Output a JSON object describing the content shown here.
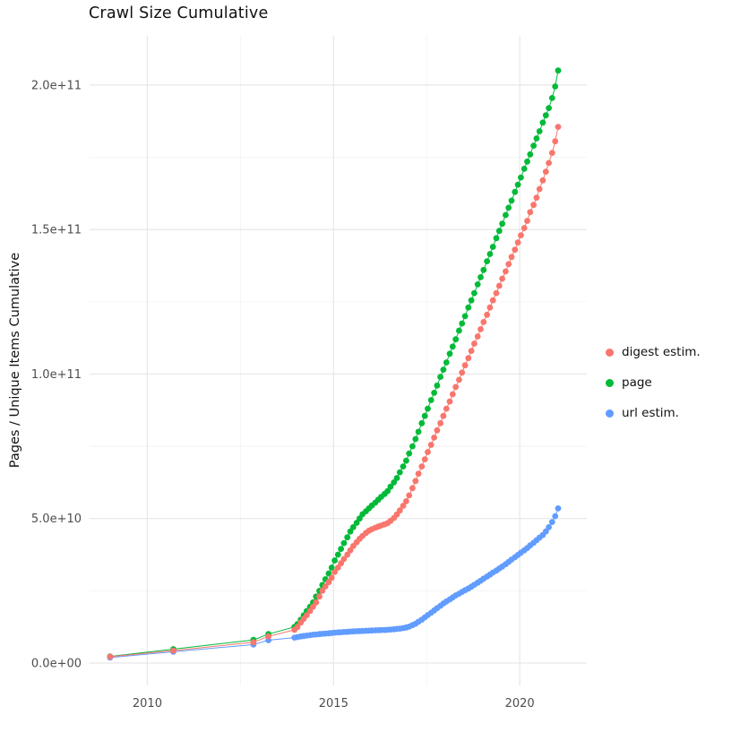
{
  "figure": {
    "title": "Crawl Size Cumulative",
    "ylabel": "Pages / Unique Items Cumulative"
  },
  "chart_data": {
    "type": "scatter",
    "title": "Crawl Size Cumulative",
    "xlabel": "",
    "ylabel": "Pages / Unique Items Cumulative",
    "grid": true,
    "legend_position": "right",
    "background_color": "#ffffff",
    "grid_major_color": "#e7e7e7",
    "grid_minor_color": "#f2f2f2",
    "tick_label_color": "#4d4d4d",
    "y_unit": 1000000000.0,
    "x_domain": [
      2008.45,
      2021.8
    ],
    "y_domain_units": [
      -7.75,
      217
    ],
    "x_ticks": [
      {
        "v": 2010,
        "label": "2010"
      },
      {
        "v": 2015,
        "label": "2015"
      },
      {
        "v": 2020,
        "label": "2020"
      }
    ],
    "y_ticks": [
      {
        "v": 0,
        "label": "0.0e+00"
      },
      {
        "v": 50,
        "label": "5.0e+10"
      },
      {
        "v": 100,
        "label": "1.0e+11"
      },
      {
        "v": 150,
        "label": "1.5e+11"
      },
      {
        "v": 200,
        "label": "2.0e+11"
      }
    ],
    "x_minor": [
      2012.5,
      2017.5
    ],
    "y_minor": [
      25,
      75,
      125,
      175
    ],
    "draw_order": [
      1,
      2,
      0
    ],
    "series": [
      {
        "id": "digest-estim",
        "name": "digest estim.",
        "color": "#F8766D",
        "points": [
          [
            2009.0,
            2.2
          ],
          [
            2010.7,
            4.3
          ],
          [
            2012.85,
            7.2
          ],
          [
            2013.25,
            9.2
          ],
          [
            2013.95,
            11.5
          ],
          [
            2014.03,
            12.5
          ],
          [
            2014.12,
            14
          ],
          [
            2014.2,
            15.3
          ],
          [
            2014.28,
            16.6
          ],
          [
            2014.37,
            18
          ],
          [
            2014.45,
            19.5
          ],
          [
            2014.53,
            21
          ],
          [
            2014.62,
            23
          ],
          [
            2014.7,
            25
          ],
          [
            2014.78,
            26.5
          ],
          [
            2014.87,
            28
          ],
          [
            2014.95,
            29.5
          ],
          [
            2015.03,
            31.5
          ],
          [
            2015.12,
            33
          ],
          [
            2015.2,
            34.5
          ],
          [
            2015.28,
            36
          ],
          [
            2015.37,
            37.5
          ],
          [
            2015.45,
            39
          ],
          [
            2015.53,
            40.5
          ],
          [
            2015.62,
            41.8
          ],
          [
            2015.7,
            43
          ],
          [
            2015.78,
            44
          ],
          [
            2015.87,
            45
          ],
          [
            2015.95,
            45.8
          ],
          [
            2016.03,
            46.3
          ],
          [
            2016.12,
            46.8
          ],
          [
            2016.2,
            47.2
          ],
          [
            2016.28,
            47.6
          ],
          [
            2016.37,
            48
          ],
          [
            2016.45,
            48.4
          ],
          [
            2016.53,
            49.2
          ],
          [
            2016.62,
            50.2
          ],
          [
            2016.7,
            51.4
          ],
          [
            2016.78,
            52.8
          ],
          [
            2016.87,
            54.4
          ],
          [
            2016.95,
            56
          ],
          [
            2017.03,
            58
          ],
          [
            2017.12,
            60.5
          ],
          [
            2017.2,
            63
          ],
          [
            2017.28,
            65.5
          ],
          [
            2017.37,
            68
          ],
          [
            2017.45,
            70.5
          ],
          [
            2017.53,
            73
          ],
          [
            2017.62,
            75.5
          ],
          [
            2017.7,
            78
          ],
          [
            2017.78,
            80.5
          ],
          [
            2017.87,
            83
          ],
          [
            2017.95,
            85.5
          ],
          [
            2018.03,
            88
          ],
          [
            2018.12,
            90.5
          ],
          [
            2018.2,
            93
          ],
          [
            2018.28,
            95.5
          ],
          [
            2018.37,
            98
          ],
          [
            2018.45,
            100.5
          ],
          [
            2018.53,
            103
          ],
          [
            2018.62,
            105.5
          ],
          [
            2018.7,
            108
          ],
          [
            2018.78,
            110.5
          ],
          [
            2018.87,
            113
          ],
          [
            2018.95,
            115.5
          ],
          [
            2019.03,
            118
          ],
          [
            2019.12,
            120.5
          ],
          [
            2019.2,
            123
          ],
          [
            2019.28,
            125.5
          ],
          [
            2019.37,
            128
          ],
          [
            2019.45,
            130.5
          ],
          [
            2019.53,
            133
          ],
          [
            2019.62,
            135.5
          ],
          [
            2019.7,
            138
          ],
          [
            2019.78,
            140.5
          ],
          [
            2019.87,
            143
          ],
          [
            2019.95,
            145.5
          ],
          [
            2020.03,
            148
          ],
          [
            2020.12,
            150.5
          ],
          [
            2020.2,
            153
          ],
          [
            2020.28,
            156
          ],
          [
            2020.37,
            158.5
          ],
          [
            2020.45,
            161
          ],
          [
            2020.53,
            164
          ],
          [
            2020.62,
            167
          ],
          [
            2020.7,
            170
          ],
          [
            2020.78,
            173
          ],
          [
            2020.87,
            176.5
          ],
          [
            2020.95,
            180.5
          ],
          [
            2021.03,
            185.5
          ]
        ]
      },
      {
        "id": "page",
        "name": "page",
        "color": "#00BA38",
        "points": [
          [
            2009.0,
            2.3
          ],
          [
            2010.7,
            4.8
          ],
          [
            2012.85,
            8.0
          ],
          [
            2013.25,
            10.0
          ],
          [
            2013.95,
            12.5
          ],
          [
            2014.03,
            13.5
          ],
          [
            2014.12,
            15
          ],
          [
            2014.2,
            16.5
          ],
          [
            2014.28,
            18
          ],
          [
            2014.37,
            19.5
          ],
          [
            2014.45,
            21
          ],
          [
            2014.53,
            23
          ],
          [
            2014.62,
            25
          ],
          [
            2014.7,
            27
          ],
          [
            2014.78,
            29
          ],
          [
            2014.87,
            31
          ],
          [
            2014.95,
            33
          ],
          [
            2015.03,
            35.5
          ],
          [
            2015.12,
            37.5
          ],
          [
            2015.2,
            39.5
          ],
          [
            2015.28,
            41.5
          ],
          [
            2015.37,
            43.5
          ],
          [
            2015.45,
            45.5
          ],
          [
            2015.53,
            47
          ],
          [
            2015.62,
            48.5
          ],
          [
            2015.7,
            50
          ],
          [
            2015.78,
            51.5
          ],
          [
            2015.87,
            52.5
          ],
          [
            2015.95,
            53.5
          ],
          [
            2016.03,
            54.5
          ],
          [
            2016.12,
            55.5
          ],
          [
            2016.2,
            56.5
          ],
          [
            2016.28,
            57.5
          ],
          [
            2016.37,
            58.5
          ],
          [
            2016.45,
            59.5
          ],
          [
            2016.53,
            61
          ],
          [
            2016.62,
            62.5
          ],
          [
            2016.7,
            64
          ],
          [
            2016.78,
            66
          ],
          [
            2016.87,
            68
          ],
          [
            2016.95,
            70
          ],
          [
            2017.03,
            72.5
          ],
          [
            2017.12,
            75
          ],
          [
            2017.2,
            77.5
          ],
          [
            2017.28,
            80
          ],
          [
            2017.37,
            83
          ],
          [
            2017.45,
            85.5
          ],
          [
            2017.53,
            88
          ],
          [
            2017.62,
            91
          ],
          [
            2017.7,
            93.5
          ],
          [
            2017.78,
            96
          ],
          [
            2017.87,
            99
          ],
          [
            2017.95,
            101.5
          ],
          [
            2018.03,
            104
          ],
          [
            2018.12,
            107
          ],
          [
            2018.2,
            109.5
          ],
          [
            2018.28,
            112
          ],
          [
            2018.37,
            115
          ],
          [
            2018.45,
            117.5
          ],
          [
            2018.53,
            120
          ],
          [
            2018.62,
            123
          ],
          [
            2018.7,
            125.5
          ],
          [
            2018.78,
            128
          ],
          [
            2018.87,
            131
          ],
          [
            2018.95,
            133.5
          ],
          [
            2019.03,
            136
          ],
          [
            2019.12,
            139
          ],
          [
            2019.2,
            141.5
          ],
          [
            2019.28,
            144
          ],
          [
            2019.37,
            147
          ],
          [
            2019.45,
            149.5
          ],
          [
            2019.53,
            152
          ],
          [
            2019.62,
            155
          ],
          [
            2019.7,
            157.5
          ],
          [
            2019.78,
            160
          ],
          [
            2019.87,
            163
          ],
          [
            2019.95,
            165.5
          ],
          [
            2020.03,
            168
          ],
          [
            2020.12,
            171
          ],
          [
            2020.2,
            173.5
          ],
          [
            2020.28,
            176
          ],
          [
            2020.37,
            179
          ],
          [
            2020.45,
            181.5
          ],
          [
            2020.53,
            184
          ],
          [
            2020.62,
            187
          ],
          [
            2020.7,
            189.5
          ],
          [
            2020.78,
            192
          ],
          [
            2020.87,
            195.5
          ],
          [
            2020.95,
            199.5
          ],
          [
            2021.03,
            205
          ]
        ]
      },
      {
        "id": "url-estim",
        "name": "url estim.",
        "color": "#619CFF",
        "points": [
          [
            2009.0,
            1.9
          ],
          [
            2010.7,
            3.9
          ],
          [
            2012.85,
            6.4
          ],
          [
            2013.25,
            7.9
          ],
          [
            2013.95,
            8.8
          ],
          [
            2014.03,
            9.0
          ],
          [
            2014.12,
            9.2
          ],
          [
            2014.2,
            9.35
          ],
          [
            2014.28,
            9.5
          ],
          [
            2014.37,
            9.65
          ],
          [
            2014.45,
            9.8
          ],
          [
            2014.53,
            9.9
          ],
          [
            2014.62,
            10.0
          ],
          [
            2014.7,
            10.1
          ],
          [
            2014.78,
            10.2
          ],
          [
            2014.87,
            10.3
          ],
          [
            2014.95,
            10.4
          ],
          [
            2015.03,
            10.5
          ],
          [
            2015.12,
            10.6
          ],
          [
            2015.2,
            10.65
          ],
          [
            2015.28,
            10.72
          ],
          [
            2015.37,
            10.8
          ],
          [
            2015.45,
            10.87
          ],
          [
            2015.53,
            10.93
          ],
          [
            2015.62,
            11.0
          ],
          [
            2015.7,
            11.05
          ],
          [
            2015.78,
            11.1
          ],
          [
            2015.87,
            11.15
          ],
          [
            2015.95,
            11.2
          ],
          [
            2016.03,
            11.25
          ],
          [
            2016.12,
            11.3
          ],
          [
            2016.2,
            11.35
          ],
          [
            2016.28,
            11.4
          ],
          [
            2016.37,
            11.45
          ],
          [
            2016.45,
            11.5
          ],
          [
            2016.53,
            11.6
          ],
          [
            2016.62,
            11.7
          ],
          [
            2016.7,
            11.8
          ],
          [
            2016.78,
            11.9
          ],
          [
            2016.87,
            12.1
          ],
          [
            2016.95,
            12.3
          ],
          [
            2017.03,
            12.6
          ],
          [
            2017.12,
            13.1
          ],
          [
            2017.2,
            13.6
          ],
          [
            2017.28,
            14.3
          ],
          [
            2017.37,
            15.0
          ],
          [
            2017.45,
            15.8
          ],
          [
            2017.53,
            16.6
          ],
          [
            2017.62,
            17.4
          ],
          [
            2017.7,
            18.2
          ],
          [
            2017.78,
            19.0
          ],
          [
            2017.87,
            19.8
          ],
          [
            2017.95,
            20.6
          ],
          [
            2018.03,
            21.3
          ],
          [
            2018.12,
            22.0
          ],
          [
            2018.2,
            22.7
          ],
          [
            2018.28,
            23.4
          ],
          [
            2018.37,
            24.0
          ],
          [
            2018.45,
            24.6
          ],
          [
            2018.53,
            25.2
          ],
          [
            2018.62,
            25.8
          ],
          [
            2018.7,
            26.4
          ],
          [
            2018.78,
            27.1
          ],
          [
            2018.87,
            27.8
          ],
          [
            2018.95,
            28.5
          ],
          [
            2019.03,
            29.2
          ],
          [
            2019.12,
            29.9
          ],
          [
            2019.2,
            30.6
          ],
          [
            2019.28,
            31.3
          ],
          [
            2019.37,
            32.0
          ],
          [
            2019.45,
            32.7
          ],
          [
            2019.53,
            33.4
          ],
          [
            2019.62,
            34.2
          ],
          [
            2019.7,
            35.0
          ],
          [
            2019.78,
            35.8
          ],
          [
            2019.87,
            36.6
          ],
          [
            2019.95,
            37.4
          ],
          [
            2020.03,
            38.2
          ],
          [
            2020.12,
            39.0
          ],
          [
            2020.2,
            39.8
          ],
          [
            2020.28,
            40.7
          ],
          [
            2020.37,
            41.6
          ],
          [
            2020.45,
            42.5
          ],
          [
            2020.53,
            43.4
          ],
          [
            2020.62,
            44.3
          ],
          [
            2020.7,
            45.5
          ],
          [
            2020.78,
            47.0
          ],
          [
            2020.87,
            48.8
          ],
          [
            2020.95,
            50.8
          ],
          [
            2021.03,
            53.5
          ]
        ]
      }
    ]
  }
}
